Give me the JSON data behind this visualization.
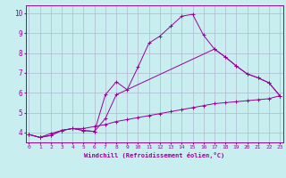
{
  "xlabel": "Windchill (Refroidissement éolien,°C)",
  "bg_color": "#c8eef0",
  "line_color": "#990099",
  "grid_color": "#b0b8d0",
  "x_ticks": [
    0,
    1,
    2,
    3,
    4,
    5,
    6,
    7,
    8,
    9,
    10,
    11,
    12,
    13,
    14,
    15,
    16,
    17,
    18,
    19,
    20,
    21,
    22,
    23
  ],
  "y_ticks": [
    4,
    5,
    6,
    7,
    8,
    9,
    10
  ],
  "ylim": [
    3.5,
    10.4
  ],
  "xlim": [
    -0.3,
    23.3
  ],
  "series1_x": [
    0,
    1,
    2,
    3,
    4,
    5,
    6,
    7,
    8,
    9,
    10,
    11,
    12,
    13,
    14,
    15,
    16,
    17,
    18,
    19,
    20,
    21,
    22,
    23
  ],
  "series1_y": [
    3.9,
    3.75,
    3.85,
    4.1,
    4.2,
    4.1,
    4.05,
    5.9,
    6.55,
    6.15,
    7.3,
    8.5,
    8.85,
    9.35,
    9.85,
    9.95,
    8.9,
    8.2,
    7.8,
    7.35,
    6.95,
    6.75,
    6.5,
    5.85
  ],
  "series2_x": [
    0,
    1,
    2,
    3,
    4,
    5,
    6,
    7,
    8,
    17,
    18,
    19,
    20,
    21,
    22,
    23
  ],
  "series2_y": [
    3.9,
    3.75,
    3.85,
    4.1,
    4.2,
    4.1,
    4.05,
    4.7,
    5.9,
    8.2,
    7.8,
    7.35,
    6.95,
    6.75,
    6.5,
    5.85
  ],
  "series3_x": [
    0,
    1,
    2,
    3,
    4,
    5,
    6,
    7,
    8,
    9,
    10,
    11,
    12,
    13,
    14,
    15,
    16,
    17,
    18,
    19,
    20,
    21,
    22,
    23
  ],
  "series3_y": [
    3.9,
    3.75,
    3.95,
    4.1,
    4.2,
    4.2,
    4.3,
    4.4,
    4.55,
    4.65,
    4.75,
    4.85,
    4.95,
    5.05,
    5.15,
    5.25,
    5.35,
    5.45,
    5.5,
    5.55,
    5.6,
    5.65,
    5.7,
    5.85
  ]
}
